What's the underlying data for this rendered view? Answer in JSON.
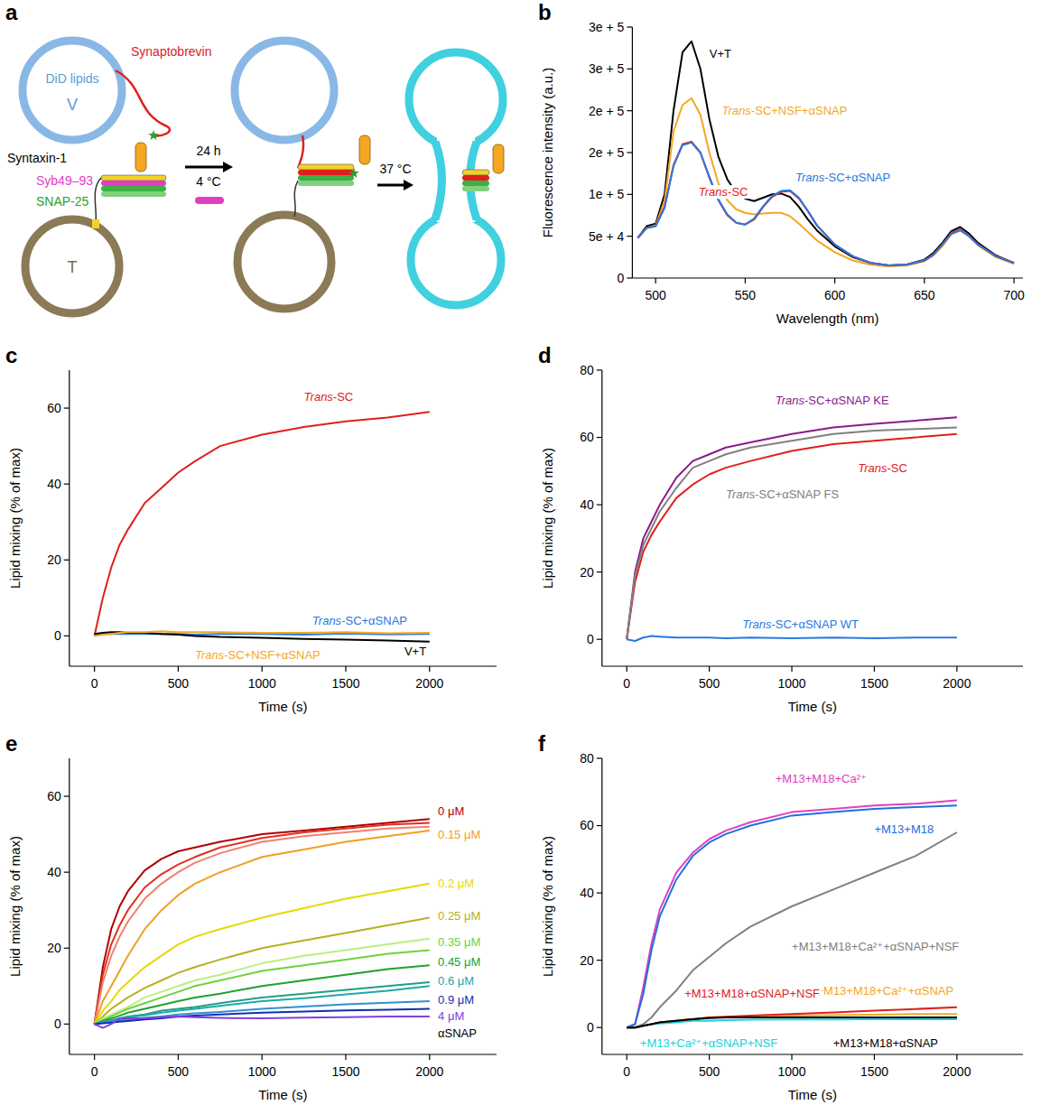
{
  "diagram": {
    "panel": "a",
    "labels": {
      "lipids": "DiD lipids",
      "v": "V",
      "t": "T",
      "synaptobrevin": "Synaptobrevin",
      "syntaxin": "Syntaxin-1",
      "syb": "Syb49–93",
      "snap25": "SNAP-25",
      "time": "24 h",
      "cold": "4 °C",
      "warm": "37 °C"
    }
  },
  "chart_data": [
    {
      "panel": "b",
      "type": "line",
      "x_label": "Wavelength (nm)",
      "y_label": "Fluorescence intensity (a.u.)",
      "grid": false,
      "x": [
        490,
        495,
        500,
        505,
        510,
        515,
        520,
        525,
        530,
        535,
        540,
        545,
        550,
        555,
        560,
        565,
        570,
        575,
        580,
        585,
        590,
        600,
        610,
        620,
        630,
        640,
        650,
        655,
        660,
        665,
        670,
        675,
        680,
        690,
        700
      ],
      "xlim": [
        487,
        705
      ],
      "xticks": [
        500,
        550,
        600,
        650,
        700
      ],
      "ylim": [
        0,
        300000
      ],
      "yticks": [
        0,
        {
          "value": 50000,
          "label": "5e + 4"
        },
        {
          "value": 100000,
          "label": "1e + 5"
        },
        {
          "value": 150000,
          "label": "2e + 5"
        },
        {
          "value": 200000,
          "label": "2e + 5"
        },
        {
          "value": 250000,
          "label": "3e + 5"
        },
        {
          "value": 300000,
          "label": "3e + 5"
        }
      ],
      "series": [
        {
          "name": "V+T",
          "color": "#000000",
          "values": [
            48000,
            62000,
            65000,
            100000,
            200000,
            270000,
            283000,
            250000,
            190000,
            145000,
            118000,
            102000,
            95000,
            92000,
            96000,
            100000,
            101000,
            97000,
            85000,
            70000,
            57000,
            38000,
            25000,
            18000,
            15000,
            16000,
            22000,
            30000,
            42000,
            56000,
            61000,
            53000,
            42000,
            27000,
            18000
          ]
        },
        {
          "name": "Trans-SC+NSF+αSNAP",
          "color": "#f5a623",
          "values": [
            48000,
            60000,
            63000,
            92000,
            175000,
            207000,
            215000,
            195000,
            150000,
            113000,
            93000,
            82000,
            78000,
            76000,
            77000,
            78000,
            78000,
            74000,
            65000,
            55000,
            45000,
            31000,
            21000,
            16000,
            14000,
            15000,
            20000,
            27000,
            38000,
            52000,
            57000,
            50000,
            39000,
            25000,
            17000
          ]
        },
        {
          "name": "Trans-SC",
          "color": "#e0201b",
          "values": [
            48000,
            60000,
            62000,
            85000,
            135000,
            160000,
            163000,
            150000,
            120000,
            93000,
            75000,
            66000,
            64000,
            70000,
            85000,
            97000,
            103000,
            104000,
            95000,
            80000,
            63000,
            40000,
            26000,
            18000,
            15000,
            16000,
            21000,
            28000,
            40000,
            54000,
            58000,
            50000,
            40000,
            26000,
            18000
          ]
        },
        {
          "name": "Trans-SC+αSNAP",
          "color": "#2a78e0",
          "values": [
            48000,
            60000,
            62000,
            84000,
            134000,
            159000,
            162000,
            150000,
            121000,
            94000,
            76000,
            66000,
            64000,
            71000,
            86000,
            98000,
            104000,
            105000,
            96000,
            80000,
            63000,
            40000,
            26000,
            18000,
            15000,
            16000,
            21000,
            28000,
            40000,
            53000,
            57000,
            50000,
            40000,
            26000,
            18000
          ]
        }
      ]
    },
    {
      "panel": "c",
      "type": "line",
      "x_label": "Time (s)",
      "y_label": "Lipid mixing (% of max)",
      "grid": false,
      "x": [
        0,
        50,
        100,
        150,
        200,
        300,
        400,
        500,
        600,
        750,
        1000,
        1250,
        1500,
        1750,
        2000
      ],
      "xlim": [
        -150,
        2400
      ],
      "xticks": [
        0,
        500,
        1000,
        1500,
        2000
      ],
      "ylim": [
        -8,
        70
      ],
      "yticks": [
        0,
        20,
        40,
        60
      ],
      "series": [
        {
          "name": "Trans-SC",
          "color": "#e0201b",
          "values": [
            0,
            10,
            18,
            24,
            28,
            35,
            39,
            43,
            46,
            50,
            53,
            55,
            56.5,
            57.5,
            59
          ]
        },
        {
          "name": "Trans-SC+αSNAP",
          "color": "#2a78e0",
          "values": [
            0.5,
            0.5,
            0.5,
            0.5,
            0.5,
            0.5,
            0.5,
            0.5,
            0.3,
            0.5,
            0.5,
            0.3,
            0.6,
            0.4,
            0.5
          ]
        },
        {
          "name": "V+T",
          "color": "#000000",
          "values": [
            0.5,
            0.8,
            1,
            1,
            0.8,
            0.8,
            0.5,
            0.3,
            0,
            -0.3,
            -0.5,
            -0.8,
            -1,
            -1.2,
            -1.5
          ]
        },
        {
          "name": "Trans-SC+NSF+αSNAP",
          "color": "#f5a623",
          "values": [
            0,
            0.3,
            0.5,
            0.8,
            1,
            1,
            1.2,
            1,
            1,
            1,
            0.8,
            0.8,
            1,
            0.7,
            0.8
          ]
        }
      ]
    },
    {
      "panel": "d",
      "type": "line",
      "x_label": "Time (s)",
      "y_label": "Lipid mixing (% of max)",
      "grid": false,
      "x": [
        0,
        50,
        100,
        150,
        200,
        300,
        400,
        500,
        600,
        750,
        1000,
        1250,
        1500,
        1750,
        2000
      ],
      "xlim": [
        -150,
        2400
      ],
      "xticks": [
        0,
        500,
        1000,
        1500,
        2000
      ],
      "ylim": [
        -8,
        80
      ],
      "yticks": [
        0,
        20,
        40,
        60,
        80
      ],
      "series": [
        {
          "name": "Trans-SC+αSNAP KE",
          "color": "#8b1a8b",
          "values": [
            0,
            20,
            30,
            35,
            40,
            48,
            53,
            55,
            57,
            58.5,
            61,
            63,
            64,
            65,
            66
          ]
        },
        {
          "name": "Trans-SC",
          "color": "#e0201b",
          "values": [
            0,
            17,
            26,
            31,
            35,
            42,
            46,
            49,
            51,
            53,
            56,
            58,
            59,
            60,
            61
          ]
        },
        {
          "name": "Trans-SC+αSNAP FS",
          "color": "#808080",
          "values": [
            0,
            19,
            28,
            33,
            38,
            45,
            51,
            53,
            55,
            57,
            59,
            61,
            62,
            62.5,
            63
          ]
        },
        {
          "name": "Trans-SC+αSNAP WT",
          "color": "#2a78e0",
          "values": [
            0,
            -0.5,
            0.5,
            1,
            0.8,
            0.5,
            0.5,
            0.5,
            0.3,
            0.5,
            0.3,
            0.5,
            0.3,
            0.5,
            0.5
          ]
        }
      ]
    },
    {
      "panel": "e",
      "type": "line",
      "x_label": "Time (s)",
      "y_label": "Lipid mixing (% of max)",
      "grid": false,
      "legend_title": "αSNAP",
      "x": [
        0,
        50,
        100,
        150,
        200,
        300,
        400,
        500,
        600,
        750,
        1000,
        1250,
        1500,
        1750,
        2000
      ],
      "xlim": [
        -150,
        2400
      ],
      "xticks": [
        0,
        500,
        1000,
        1500,
        2000
      ],
      "ylim": [
        -8,
        70
      ],
      "yticks": [
        0,
        20,
        40,
        60
      ],
      "series": [
        {
          "name": "0 μM",
          "color": "#b00000",
          "values": [
            0,
            15,
            25,
            31,
            35,
            40.5,
            43.5,
            45.5,
            46.5,
            48,
            50,
            51,
            52,
            53,
            54
          ]
        },
        {
          "color": "#e03020",
          "values": [
            0,
            13,
            21,
            26,
            30,
            36,
            39.5,
            42,
            44,
            46.5,
            49,
            50.5,
            51.5,
            52.5,
            53
          ]
        },
        {
          "color": "#f08070",
          "values": [
            0,
            11,
            18,
            23,
            27,
            33,
            37,
            40,
            42.5,
            45,
            48,
            49.5,
            50.5,
            51.5,
            52
          ]
        },
        {
          "name": "0.15 μM",
          "color": "#f0a020",
          "values": [
            0,
            6,
            10,
            14,
            18,
            25,
            30,
            34,
            37,
            40,
            44,
            46,
            48,
            49.5,
            51
          ]
        },
        {
          "name": "0.2 μM",
          "color": "#e8d800",
          "values": [
            0,
            3.5,
            6,
            9,
            11,
            15,
            18,
            21,
            23,
            25,
            28,
            30.5,
            33,
            35,
            37
          ]
        },
        {
          "name": "0.25 μM",
          "color": "#b8b020",
          "values": [
            0,
            2,
            4,
            5.5,
            7,
            9.5,
            11.5,
            13.5,
            15,
            17,
            20,
            22,
            24,
            26,
            28
          ]
        },
        {
          "color": "#b8f080",
          "values": [
            0,
            1.5,
            2.5,
            3.5,
            4.5,
            7,
            8.5,
            10,
            11.5,
            13,
            16,
            18,
            19.5,
            21,
            22.5
          ]
        },
        {
          "name": "0.35 μM",
          "color": "#70d040",
          "values": [
            0,
            1,
            2,
            3,
            4,
            5.5,
            7,
            8.5,
            10,
            11.5,
            14,
            15.5,
            17,
            18.5,
            19.5
          ]
        },
        {
          "name": "0.45 μM",
          "color": "#20a030",
          "values": [
            0,
            0.8,
            1.5,
            2.2,
            3,
            4,
            5,
            6,
            7,
            8,
            10,
            11.5,
            13,
            14.5,
            15.5
          ]
        },
        {
          "color": "#20a080",
          "values": [
            0,
            0.5,
            1,
            1.5,
            2,
            2.5,
            3.5,
            4,
            4.5,
            5.5,
            7,
            8,
            9,
            10,
            11
          ]
        },
        {
          "name": "0.6 μM",
          "color": "#20a8a8",
          "values": [
            0,
            0.5,
            1,
            1.3,
            1.8,
            2.3,
            3,
            3.5,
            4,
            4.8,
            6,
            6.8,
            7.8,
            8.8,
            10
          ]
        },
        {
          "color": "#3090d0",
          "values": [
            0,
            0.3,
            0.6,
            0.9,
            1.2,
            1.6,
            2,
            2.5,
            2.8,
            3.2,
            4,
            4.6,
            5.2,
            5.6,
            6
          ]
        },
        {
          "name": "0.9 μM",
          "color": "#1030b0",
          "values": [
            0,
            0.2,
            0.4,
            0.6,
            0.8,
            1.2,
            1.5,
            2,
            2.2,
            2.5,
            3,
            3.3,
            3.6,
            3.8,
            4
          ]
        },
        {
          "name": "4 μM",
          "color": "#8040e0",
          "values": [
            0,
            -1,
            0,
            1.5,
            1.5,
            1.5,
            1.8,
            2,
            1.8,
            1.6,
            1.5,
            1.7,
            1.8,
            2,
            2
          ]
        }
      ]
    },
    {
      "panel": "f",
      "type": "line",
      "x_label": "Time (s)",
      "y_label": "Lipid mixing (% of max)",
      "grid": false,
      "x": [
        0,
        50,
        100,
        150,
        200,
        300,
        400,
        500,
        600,
        750,
        1000,
        1250,
        1500,
        1750,
        2000
      ],
      "xlim": [
        -150,
        2400
      ],
      "xticks": [
        0,
        500,
        1000,
        1500,
        2000
      ],
      "ylim": [
        -8,
        80
      ],
      "yticks": [
        0,
        20,
        40,
        60,
        80
      ],
      "series": [
        {
          "name": "+M13+M18+Ca²⁺",
          "color": "#e040c0",
          "values": [
            0,
            1,
            12,
            25,
            35,
            46,
            52,
            56,
            58.5,
            61,
            64,
            65,
            66,
            66.5,
            67.5
          ]
        },
        {
          "name": "+M13+M18",
          "color": "#2070e0",
          "values": [
            0,
            1,
            10,
            23,
            33,
            44,
            51,
            55,
            57.5,
            60,
            63,
            64,
            65,
            65.5,
            66
          ]
        },
        {
          "name": "+M13+M18+Ca²⁺+αSNAP+NSF",
          "color": "#808080",
          "values": [
            0,
            0,
            1,
            3,
            6,
            11,
            17,
            21,
            25,
            30,
            36,
            41,
            46,
            51,
            58
          ]
        },
        {
          "name": "+M13+M18+Ca²⁺+αSNAP",
          "color": "#f5a623",
          "values": [
            0,
            0,
            0.5,
            1,
            1.5,
            2,
            2.5,
            3,
            3,
            3.2,
            3.5,
            3.7,
            3.8,
            4,
            4
          ]
        },
        {
          "name": "+M13+M18+αSNAP+NSF",
          "color": "#e0201b",
          "values": [
            0,
            0,
            0.5,
            1,
            1.5,
            2,
            2.5,
            3,
            3.2,
            3.5,
            4,
            4.5,
            5,
            5.5,
            6
          ]
        },
        {
          "name": "+M13+Ca²⁺+αSNAP+NSF",
          "color": "#20d0e0",
          "values": [
            0,
            0,
            0.5,
            1,
            1.2,
            1.5,
            2,
            2,
            2.2,
            2.3,
            2.4,
            2.4,
            2.5,
            2.5,
            2.5
          ]
        },
        {
          "name": "+M13+M18+αSNAP",
          "color": "#000000",
          "values": [
            0,
            0,
            0.5,
            1,
            1.5,
            2,
            2.5,
            2.8,
            3,
            3,
            3,
            3,
            3,
            3,
            3
          ]
        }
      ]
    }
  ]
}
